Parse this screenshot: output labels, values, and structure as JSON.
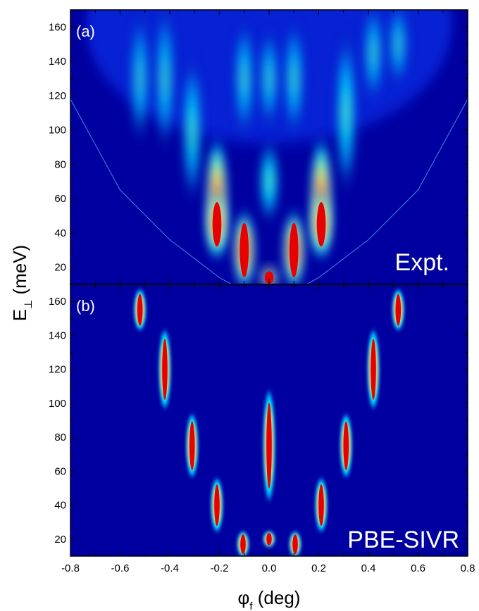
{
  "chart_data": [
    {
      "type": "heatmap",
      "panel_label": "(a)",
      "tag": "Expt.",
      "x_range": [
        -0.8,
        0.8
      ],
      "y_range": [
        10,
        170
      ],
      "xlabel": "φ",
      "xlabel_sub": "f",
      "xlabel_unit": " (deg)",
      "ylabel": "E",
      "ylabel_sub": "⊥",
      "ylabel_unit": " (meV)",
      "colormap": [
        "#000080",
        "#0000c8",
        "#1e5aff",
        "#00b4ff",
        "#00ffff",
        "#7fff7f",
        "#ffff00",
        "#ff7f00",
        "#e60000"
      ],
      "parabola_boundary": [
        [
          -0.8,
          118
        ],
        [
          -0.6,
          65
        ],
        [
          -0.4,
          36
        ],
        [
          -0.2,
          14
        ],
        [
          -0.15,
          10
        ],
        [
          0.15,
          10
        ],
        [
          0.2,
          14
        ],
        [
          0.4,
          36
        ],
        [
          0.6,
          65
        ],
        [
          0.8,
          118
        ]
      ],
      "peaks": [
        {
          "phi": -0.52,
          "e_center": 130,
          "e_halfspan": 40,
          "intensity": 0.45
        },
        {
          "phi": -0.42,
          "e_center": 130,
          "e_halfspan": 45,
          "intensity": 0.5
        },
        {
          "phi": -0.31,
          "e_center": 100,
          "e_halfspan": 45,
          "intensity": 0.65
        },
        {
          "phi": -0.21,
          "e_center": 60,
          "e_halfspan": 35,
          "intensity": 0.9
        },
        {
          "phi": -0.21,
          "e_center": 45,
          "e_halfspan": 18,
          "intensity": 1.0
        },
        {
          "phi": -0.1,
          "e_center": 30,
          "e_halfspan": 22,
          "intensity": 1.0
        },
        {
          "phi": -0.1,
          "e_center": 130,
          "e_halfspan": 35,
          "intensity": 0.55
        },
        {
          "phi": 0.0,
          "e_center": 70,
          "e_halfspan": 25,
          "intensity": 0.8
        },
        {
          "phi": 0.0,
          "e_center": 130,
          "e_halfspan": 30,
          "intensity": 0.5
        },
        {
          "phi": 0.0,
          "e_center": 14,
          "e_halfspan": 5,
          "intensity": 1.0
        },
        {
          "phi": 0.1,
          "e_center": 30,
          "e_halfspan": 22,
          "intensity": 1.0
        },
        {
          "phi": 0.1,
          "e_center": 130,
          "e_halfspan": 35,
          "intensity": 0.55
        },
        {
          "phi": 0.21,
          "e_center": 60,
          "e_halfspan": 35,
          "intensity": 0.9
        },
        {
          "phi": 0.21,
          "e_center": 45,
          "e_halfspan": 18,
          "intensity": 1.0
        },
        {
          "phi": 0.31,
          "e_center": 110,
          "e_halfspan": 50,
          "intensity": 0.7
        },
        {
          "phi": 0.42,
          "e_center": 145,
          "e_halfspan": 30,
          "intensity": 0.5
        },
        {
          "phi": 0.52,
          "e_center": 150,
          "e_halfspan": 25,
          "intensity": 0.45
        }
      ]
    },
    {
      "type": "heatmap",
      "panel_label": "(b)",
      "tag": "PBE-SIVR",
      "x_range": [
        -0.8,
        0.8
      ],
      "y_range": [
        10,
        170
      ],
      "xlabel": "φ",
      "xlabel_sub": "f",
      "xlabel_unit": " (deg)",
      "ylabel": "E",
      "ylabel_sub": "⊥",
      "ylabel_unit": " (meV)",
      "colormap": [
        "#000080",
        "#0000c8",
        "#1e5aff",
        "#00b4ff",
        "#00ffff",
        "#7fff7f",
        "#ffff00",
        "#ff7f00",
        "#e60000"
      ],
      "peaks": [
        {
          "phi": -0.52,
          "e_center": 155,
          "e_halfspan": 13,
          "intensity": 1.0
        },
        {
          "phi": 0.52,
          "e_center": 155,
          "e_halfspan": 13,
          "intensity": 1.0
        },
        {
          "phi": -0.42,
          "e_center": 120,
          "e_halfspan": 25,
          "intensity": 1.0
        },
        {
          "phi": 0.42,
          "e_center": 120,
          "e_halfspan": 25,
          "intensity": 1.0
        },
        {
          "phi": -0.31,
          "e_center": 75,
          "e_halfspan": 20,
          "intensity": 1.0
        },
        {
          "phi": 0.31,
          "e_center": 75,
          "e_halfspan": 20,
          "intensity": 1.0
        },
        {
          "phi": -0.21,
          "e_center": 40,
          "e_halfspan": 17,
          "intensity": 1.0
        },
        {
          "phi": 0.21,
          "e_center": 40,
          "e_halfspan": 17,
          "intensity": 1.0
        },
        {
          "phi": -0.105,
          "e_center": 17,
          "e_halfspan": 8,
          "intensity": 1.0
        },
        {
          "phi": 0.105,
          "e_center": 17,
          "e_halfspan": 8,
          "intensity": 1.0
        },
        {
          "phi": 0.0,
          "e_center": 75,
          "e_halfspan": 35,
          "intensity": 1.0
        },
        {
          "phi": 0.0,
          "e_center": 20,
          "e_halfspan": 5,
          "intensity": 1.0
        }
      ]
    }
  ],
  "axes": {
    "x_ticks": [
      "-0.8",
      "-0.6",
      "-0.4",
      "-0.2",
      "0.0",
      "0.2",
      "0.4",
      "0.6",
      "0.8"
    ],
    "y_ticks_top": [
      "20",
      "40",
      "60",
      "80",
      "100",
      "120",
      "140",
      "160"
    ],
    "y_ticks_bottom": [
      "20",
      "40",
      "60",
      "80",
      "100",
      "120",
      "140",
      "160"
    ]
  },
  "colors": {
    "background": "#0000a0",
    "axis": "#000000"
  }
}
